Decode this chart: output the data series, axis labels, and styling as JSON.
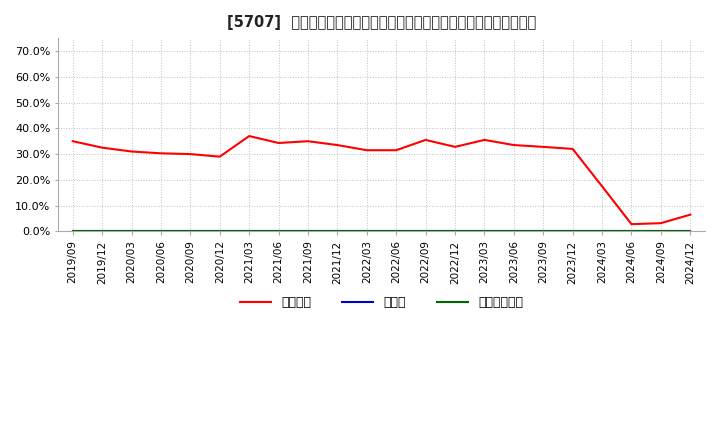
{
  "title": "[5707]  自己資本、のれん、繰延税金資産の総資産に対する比率の推移",
  "x_labels": [
    "2019/09",
    "2019/12",
    "2020/03",
    "2020/06",
    "2020/09",
    "2020/12",
    "2021/03",
    "2021/06",
    "2021/09",
    "2021/12",
    "2022/03",
    "2022/06",
    "2022/09",
    "2022/12",
    "2023/03",
    "2023/06",
    "2023/09",
    "2023/12",
    "2024/03",
    "2024/06",
    "2024/09",
    "2024/12"
  ],
  "equity_ratio": [
    0.35,
    0.325,
    0.31,
    0.303,
    0.3,
    0.29,
    0.37,
    0.343,
    0.35,
    0.335,
    0.315,
    0.315,
    0.355,
    0.328,
    0.355,
    0.335,
    0.328,
    0.32,
    0.175,
    0.028,
    0.032,
    0.065
  ],
  "noren_ratio": [
    0,
    0,
    0,
    0,
    0,
    0,
    0,
    0,
    0,
    0,
    0,
    0,
    0,
    0,
    0,
    0,
    0,
    0,
    0,
    0,
    0,
    0
  ],
  "deferred_tax_ratio": [
    0,
    0,
    0,
    0,
    0,
    0,
    0,
    0,
    0,
    0,
    0,
    0,
    0,
    0,
    0,
    0,
    0,
    0,
    0,
    0,
    0,
    0
  ],
  "equity_color": "#ff0000",
  "noren_color": "#0000cc",
  "deferred_color": "#006600",
  "bg_color": "#ffffff",
  "plot_bg_color": "#ffffff",
  "grid_color": "#b0b0b0",
  "ylim": [
    0.0,
    0.75
  ],
  "yticks": [
    0.0,
    0.1,
    0.2,
    0.3,
    0.4,
    0.5,
    0.6,
    0.7
  ],
  "legend_labels": [
    "自己資本",
    "のれん",
    "繰延税金資産"
  ],
  "title_prefix": "[5707]  ",
  "title_main": "自己資本、のれん、繰延税金資産の総資産に対する比率の推移"
}
